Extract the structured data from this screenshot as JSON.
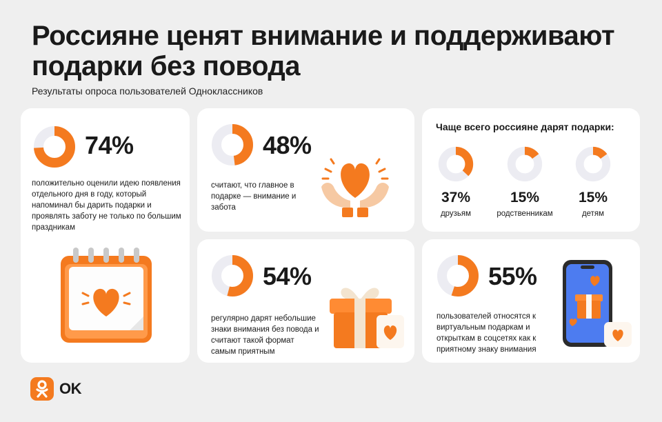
{
  "header": {
    "title": "Россияне ценят внимание и поддерживают подарки без повода",
    "subtitle": "Результаты опроса пользователей Одноклассников"
  },
  "colors": {
    "accent": "#f47a1f",
    "track": "#ececf2",
    "background": "#efefef",
    "card": "#ffffff"
  },
  "cards": {
    "c1": {
      "percent": "74%",
      "value": 74,
      "text": "положительно оценили идею появления отдельного дня в году, который напоминал бы дарить подарки и проявлять заботу не только по большим праздникам",
      "icon": "calendar-heart-icon"
    },
    "c2": {
      "percent": "48%",
      "value": 48,
      "text": "считают, что главное в подарке — внимание и забота",
      "icon": "hands-heart-icon"
    },
    "c3": {
      "title": "Чаще всего россияне дарят подарки:",
      "items": [
        {
          "percent": "37%",
          "value": 37,
          "label": "друзьям"
        },
        {
          "percent": "15%",
          "value": 15,
          "label": "родственникам"
        },
        {
          "percent": "15%",
          "value": 15,
          "label": "детям"
        }
      ]
    },
    "c4": {
      "percent": "54%",
      "value": 54,
      "text": "регулярно дарят небольшие знаки внимания без повода и считают такой формат самым приятным",
      "icon": "gift-box-icon"
    },
    "c5": {
      "percent": "55%",
      "value": 55,
      "text": "пользователей относятся к виртуальным подаркам и открыткам в соцсетях как к приятному знаку внимания",
      "icon": "phone-gift-icon"
    }
  },
  "brand": {
    "name": "OK",
    "icon": "ok-logo-icon"
  }
}
